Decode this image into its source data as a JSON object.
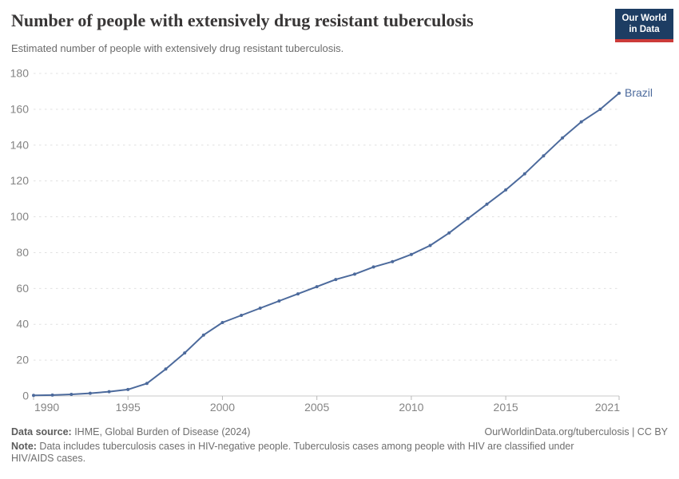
{
  "header": {
    "title": "Number of people with extensively drug resistant tuberculosis",
    "subtitle": "Estimated number of people with extensively drug resistant tuberculosis.",
    "logo_line1": "Our World",
    "logo_line2": "in Data"
  },
  "chart_data": {
    "type": "line",
    "title": "Number of people with extensively drug resistant tuberculosis",
    "xlim": [
      1990,
      2021
    ],
    "ylim": [
      0,
      180
    ],
    "x_ticks": [
      1990,
      1995,
      2000,
      2005,
      2010,
      2015,
      2021
    ],
    "y_ticks": [
      0,
      20,
      40,
      60,
      80,
      100,
      120,
      140,
      160,
      180
    ],
    "grid": "horizontal-dashed",
    "legend_position": "end-of-line-label",
    "series": [
      {
        "name": "Brazil",
        "color": "#4c6a9c",
        "x": [
          1990,
          1991,
          1992,
          1993,
          1994,
          1995,
          1996,
          1997,
          1998,
          1999,
          2000,
          2001,
          2002,
          2003,
          2004,
          2005,
          2006,
          2007,
          2008,
          2009,
          2010,
          2011,
          2012,
          2013,
          2014,
          2015,
          2016,
          2017,
          2018,
          2019,
          2020,
          2021
        ],
        "values": [
          0.3,
          0.5,
          0.9,
          1.5,
          2.4,
          3.6,
          7,
          15,
          24,
          34,
          41,
          45,
          49,
          53,
          57,
          61,
          65,
          68,
          72,
          75,
          79,
          84,
          91,
          99,
          107,
          115,
          124,
          134,
          144,
          153,
          160,
          169
        ]
      }
    ]
  },
  "footer": {
    "source_label": "Data source:",
    "source_text": " IHME, Global Burden of Disease (2024)",
    "attribution": "OurWorldinData.org/tuberculosis | CC BY",
    "note_label": "Note:",
    "note_text": " Data includes tuberculosis cases in HIV-negative people. Tuberculosis cases among people with HIV are classified under HIV/AIDS cases."
  },
  "colors": {
    "line_blue": "#4c6a9c",
    "logo_navy": "#1d3d63",
    "logo_red": "#cc3b39",
    "gridline": "#e0e0e0",
    "axis": "#c8c8c8",
    "tick_mark": "#b8b8b8",
    "tick_label": "#848484",
    "title_text": "#383636",
    "body_text": "#6e6e6e"
  }
}
